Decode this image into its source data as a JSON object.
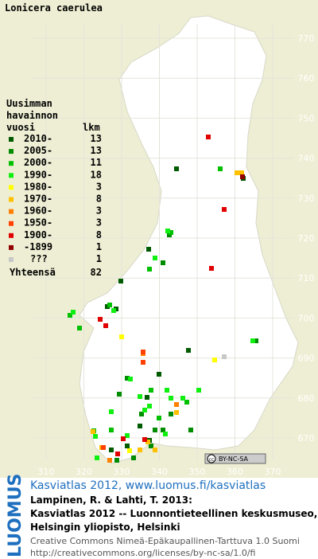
{
  "title": "Lonicera caerulea",
  "legend": {
    "header": [
      "Uusimman",
      "havainnon",
      "vuosi",
      "lkm"
    ],
    "rows": [
      {
        "label": "2010-",
        "count": 13,
        "color": "#005a00"
      },
      {
        "label": "2005-",
        "count": 13,
        "color": "#008c00"
      },
      {
        "label": "2000-",
        "count": 11,
        "color": "#00c000"
      },
      {
        "label": "1990-",
        "count": 18,
        "color": "#10f010"
      },
      {
        "label": "1980-",
        "count": 3,
        "color": "#ffff00"
      },
      {
        "label": "1970-",
        "count": 8,
        "color": "#ffc000"
      },
      {
        "label": "1960-",
        "count": 3,
        "color": "#ff8000"
      },
      {
        "label": "1950-",
        "count": 3,
        "color": "#ff4000"
      },
      {
        "label": "1900-",
        "count": 8,
        "color": "#e00000"
      },
      {
        "label": "-1899",
        "count": 1,
        "color": "#900000"
      },
      {
        "label": "???",
        "count": 1,
        "color": "#c8c8c8"
      }
    ],
    "total": {
      "label": "Yhteensä",
      "count": 82
    }
  },
  "grid": {
    "x_labels": [
      310,
      320,
      330,
      340,
      350,
      360,
      370
    ],
    "y_labels": [
      770,
      760,
      750,
      740,
      730,
      720,
      710,
      700,
      690,
      680,
      670
    ]
  },
  "license_badge": {
    "cc": "cc",
    "text": "BY-NC-SA"
  },
  "side_label": "LUOMUS",
  "credits": {
    "link": "Kasviatlas 2012, www.luomus.fi/kasviatlas",
    "citation": [
      "Lampinen, R. & Lahti, T. 2013:",
      "Kasviatlas 2012 -- Luonnontieteellinen keskusmuseo,",
      "Helsingin yliopisto, Helsinki"
    ],
    "license": [
      "Creative Commons Nimeä-Epäkaupallinen-Tarttuva 1.0 Suomi",
      "http://creativecommons.org/licenses/by-nc-sa/1.0/fi"
    ]
  }
}
